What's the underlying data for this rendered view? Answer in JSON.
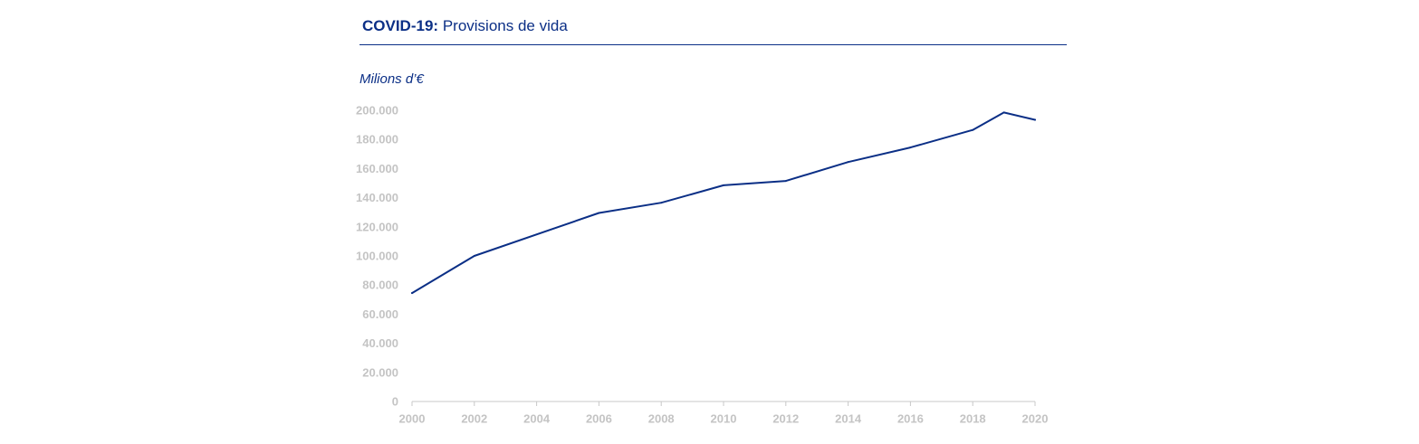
{
  "header": {
    "title_bold": "COVID-19:",
    "title_rest": "Provisions de vida",
    "ylabel": "Milions d’€"
  },
  "colors": {
    "title": "#0b2f86",
    "line": "#0b2f86",
    "ticks": "#c4c4c4",
    "axis": "#c8c8c8"
  },
  "chart_data": {
    "type": "line",
    "title": "COVID-19: Provisions de vida",
    "xlabel": "",
    "ylabel": "Milions d’€",
    "xlim": [
      2000,
      2020
    ],
    "ylim": [
      0,
      200000
    ],
    "x_ticks": [
      "2000",
      "2002",
      "2004",
      "2006",
      "2008",
      "2010",
      "2012",
      "2014",
      "2016",
      "2018",
      "2020"
    ],
    "y_ticks": [
      {
        "value": 0,
        "label": "0"
      },
      {
        "value": 20000,
        "label": "20.000"
      },
      {
        "value": 40000,
        "label": "40.000"
      },
      {
        "value": 60000,
        "label": "60.000"
      },
      {
        "value": 80000,
        "label": "80.000"
      },
      {
        "value": 100000,
        "label": "100.000"
      },
      {
        "value": 120000,
        "label": "120.000"
      },
      {
        "value": 140000,
        "label": "140.000"
      },
      {
        "value": 160000,
        "label": "160.000"
      },
      {
        "value": 180000,
        "label": "180.000"
      },
      {
        "value": 200000,
        "label": "200.000"
      }
    ],
    "grid": false,
    "legend": "none",
    "series": [
      {
        "points": [
          {
            "x": 2000,
            "y": 74500
          },
          {
            "x": 2002,
            "y": 100000
          },
          {
            "x": 2006,
            "y": 129500
          },
          {
            "x": 2008,
            "y": 136500
          },
          {
            "x": 2010,
            "y": 148500
          },
          {
            "x": 2012,
            "y": 151500
          },
          {
            "x": 2014,
            "y": 164500
          },
          {
            "x": 2016,
            "y": 174500
          },
          {
            "x": 2018,
            "y": 186500
          },
          {
            "x": 2019,
            "y": 198500
          },
          {
            "x": 2020,
            "y": 193500
          }
        ]
      }
    ]
  }
}
